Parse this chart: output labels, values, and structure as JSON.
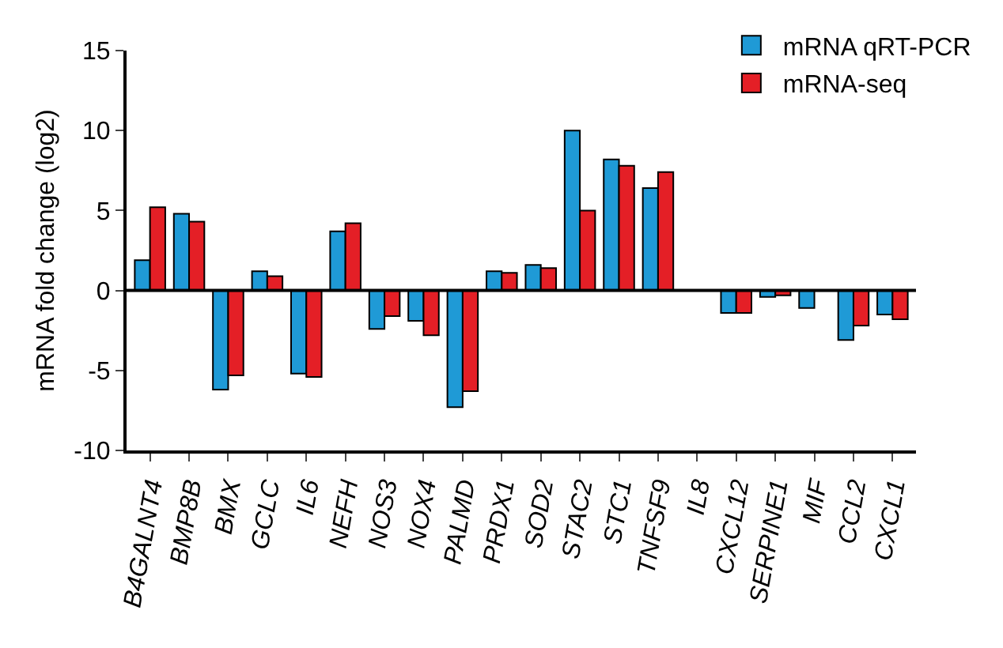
{
  "chart_data": {
    "type": "bar",
    "ylabel": "mRNA fold change (log2)",
    "categories": [
      "B4GALNT4",
      "BMP8B",
      "BMX",
      "GCLC",
      "IL6",
      "NEFH",
      "NOS3",
      "NOX4",
      "PALMD",
      "PRDX1",
      "SOD2",
      "STAC2",
      "STC1",
      "TNFSF9",
      "IL8",
      "CXCL12",
      "SERPINE1",
      "MIF",
      "CCL2",
      "CXCL1"
    ],
    "series": [
      {
        "name": "mRNA qRT-PCR",
        "color": "#1f9ad6",
        "values": [
          1.9,
          4.8,
          -6.2,
          1.2,
          -5.2,
          3.7,
          -2.4,
          -1.9,
          -7.3,
          1.2,
          1.6,
          10.0,
          8.2,
          6.4,
          null,
          -1.4,
          -0.4,
          -1.1,
          -3.1,
          -1.5
        ]
      },
      {
        "name": "mRNA-seq",
        "color": "#e41f26",
        "values": [
          5.2,
          4.3,
          -5.3,
          0.9,
          -5.4,
          4.2,
          -1.6,
          -2.8,
          -6.3,
          1.1,
          1.4,
          5.0,
          7.8,
          7.4,
          null,
          -1.4,
          -0.3,
          null,
          -2.2,
          -1.8
        ]
      }
    ],
    "ylim": [
      -10,
      15
    ],
    "yticks": [
      -10,
      -5,
      0,
      5,
      10,
      15
    ],
    "legend": "top right",
    "ref_lines": [
      {
        "axis": "y",
        "value": 0,
        "color": "#000000"
      }
    ]
  }
}
